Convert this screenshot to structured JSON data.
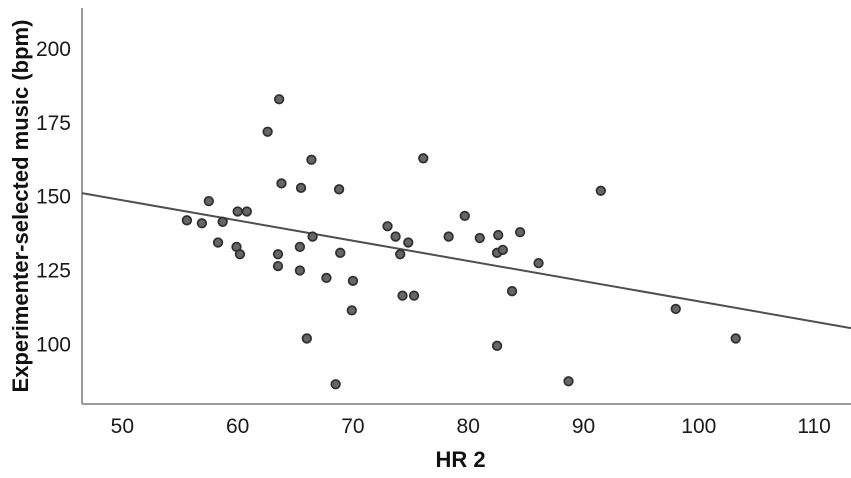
{
  "chart_data": {
    "type": "scatter",
    "title": "",
    "xlabel": "HR 2",
    "ylabel": "Experimenter-selected music (bpm)",
    "xlim": [
      46.5,
      113.2
    ],
    "ylim": [
      79.8,
      213.9
    ],
    "x_ticks": [
      50,
      60,
      70,
      80,
      90,
      100,
      110
    ],
    "y_ticks": [
      100,
      125,
      150,
      175,
      200
    ],
    "grid": false,
    "legend": "none",
    "points": [
      [
        63.6,
        183
      ],
      [
        62.6,
        172
      ],
      [
        66.4,
        162.5
      ],
      [
        76.1,
        163
      ],
      [
        63.8,
        154.5
      ],
      [
        65.5,
        153
      ],
      [
        68.8,
        152.5
      ],
      [
        91.5,
        152
      ],
      [
        57.5,
        148.5
      ],
      [
        60,
        145
      ],
      [
        60.8,
        145
      ],
      [
        55.6,
        142
      ],
      [
        56.9,
        141
      ],
      [
        58.7,
        141.5
      ],
      [
        66.5,
        136.5
      ],
      [
        58.3,
        134.5
      ],
      [
        59.9,
        133
      ],
      [
        60.2,
        130.5
      ],
      [
        63.5,
        130.5
      ],
      [
        63.5,
        126.5
      ],
      [
        65.4,
        133
      ],
      [
        65.4,
        125
      ],
      [
        67.7,
        122.5
      ],
      [
        68.9,
        131
      ],
      [
        70,
        121.5
      ],
      [
        69.9,
        111.5
      ],
      [
        66,
        102
      ],
      [
        68.5,
        86.5
      ],
      [
        79.7,
        143.5
      ],
      [
        73,
        140
      ],
      [
        73.7,
        136.5
      ],
      [
        74.8,
        134.5
      ],
      [
        78.3,
        136.5
      ],
      [
        81,
        136
      ],
      [
        82.6,
        137
      ],
      [
        84.5,
        138
      ],
      [
        74.1,
        130.5
      ],
      [
        82.5,
        131
      ],
      [
        83,
        132
      ],
      [
        86.1,
        127.5
      ],
      [
        74.3,
        116.5
      ],
      [
        75.3,
        116.5
      ],
      [
        83.8,
        118
      ],
      [
        82.5,
        99.5
      ],
      [
        88.7,
        87.5
      ],
      [
        98,
        112
      ],
      [
        103.2,
        102
      ]
    ],
    "fit_line": {
      "x1": 46.5,
      "y1": 151.2,
      "x2": 113.2,
      "y2": 105.5
    },
    "colors": {
      "background": "#ffffff",
      "axis": "#9a9a9a",
      "tick_text": "#1a1a1a",
      "title_text": "#111111",
      "point_fill": "#666666",
      "point_stroke": "#2e2e2e",
      "fit_line": "#4f4f4f"
    }
  }
}
